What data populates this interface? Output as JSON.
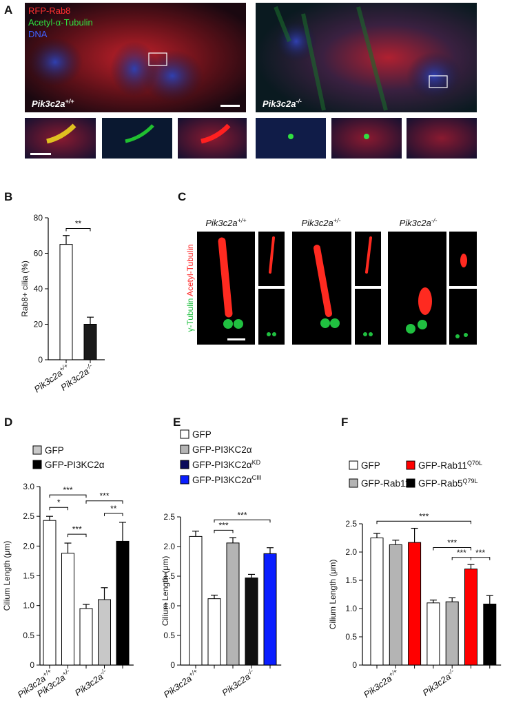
{
  "panels": {
    "A": {
      "label": "A",
      "channels": [
        "RFP-Rab8",
        "Acetyl-α-Tubulin",
        "DNA"
      ],
      "genotypes": [
        {
          "base": "Pik3c2a",
          "sup": "+/+"
        },
        {
          "base": "Pik3c2a",
          "sup": "-/-"
        }
      ]
    },
    "C": {
      "label": "C",
      "stain": [
        "γ-Tubulin",
        "Acetyl-Tubulin"
      ],
      "genotypes": [
        {
          "base": "Pik3c2a",
          "sup": "+/+"
        },
        {
          "base": "Pik3c2a",
          "sup": "+/-"
        },
        {
          "base": "Pik3c2a",
          "sup": "-/-"
        }
      ]
    }
  },
  "chart_data": [
    {
      "type": "bar",
      "panel": "B",
      "ylabel": "Rab8+ cilia (%)",
      "categories": [
        {
          "base": "Pik3c2a",
          "sup": "+/+"
        },
        {
          "base": "Pik3c2a",
          "sup": "-/-"
        }
      ],
      "values": [
        65,
        20
      ],
      "errors": [
        5,
        4
      ],
      "colors": [
        "#ffffff",
        "#1a1a1a"
      ],
      "ylim": [
        0,
        80
      ],
      "yticks": [
        0,
        20,
        40,
        60,
        80
      ],
      "significance": [
        {
          "label": "**",
          "between": [
            0,
            1
          ]
        }
      ]
    },
    {
      "type": "bar",
      "panel": "D",
      "ylabel": "Cilium Length (μm)",
      "legend": [
        {
          "label": "GFP",
          "color": "#c8c8c8"
        },
        {
          "label": "GFP-PI3KC2α",
          "color": "#000000"
        }
      ],
      "categories": [
        {
          "base": "Pik3c2a",
          "sup": "+/+"
        },
        {
          "base": "Pik3c2a",
          "sup": "+/-"
        },
        null,
        {
          "base": "Pik3c2a",
          "sup": "-/-"
        },
        null
      ],
      "values": [
        2.43,
        1.88,
        0.95,
        1.1,
        2.08
      ],
      "errors": [
        0.07,
        0.17,
        0.07,
        0.2,
        0.32
      ],
      "colors": [
        "#ffffff",
        "#ffffff",
        "#ffffff",
        "#c8c8c8",
        "#000000"
      ],
      "ylim": [
        0,
        3
      ],
      "yticks": [
        0,
        0.5,
        {
          "value": 1,
          "label": "1.0"
        },
        1.5,
        {
          "value": 2,
          "label": "2.0"
        },
        2.5,
        {
          "value": 3,
          "label": "3.0"
        }
      ],
      "significance": [
        {
          "label": "***",
          "between": [
            0,
            2
          ]
        },
        {
          "label": "*",
          "between": [
            0,
            1
          ]
        },
        {
          "label": "***",
          "between": [
            1,
            2
          ]
        },
        {
          "label": "***",
          "between": [
            2,
            4
          ]
        },
        {
          "label": "**",
          "between": [
            3,
            4
          ]
        }
      ]
    },
    {
      "type": "bar",
      "panel": "E",
      "ylabel": "Cilium Length (μm)",
      "legend": [
        {
          "label": "GFP",
          "color": "#ffffff"
        },
        {
          "label": "GFP-PI3KC2α",
          "color": "#b4b4b4"
        },
        {
          "label": "GFP-PI3KC2α",
          "sup": "KD",
          "color": "#0a0a5a"
        },
        {
          "label": "GFP-PI3KC2α",
          "sup": "CIII",
          "color": "#0a1eff"
        }
      ],
      "categories": [
        {
          "base": "Pik3c2a",
          "sup": "+/+"
        },
        null,
        null,
        {
          "base": "Pik3c2a",
          "sup": "-/-"
        },
        null
      ],
      "values": [
        2.17,
        1.12,
        2.06,
        1.47,
        1.88
      ],
      "errors": [
        0.09,
        0.06,
        0.09,
        0.06,
        0.1
      ],
      "colors": [
        "#ffffff",
        "#ffffff",
        "#b4b4b4",
        "#111111",
        "#0a1eff"
      ],
      "ylim": [
        0,
        2.5
      ],
      "yticks": [
        0,
        0.5,
        {
          "value": 1,
          "label": "1.0"
        },
        1.5,
        {
          "value": 2,
          "label": "2.0"
        },
        2.5
      ],
      "significance": [
        {
          "label": "***",
          "between": [
            1,
            2
          ]
        },
        {
          "label": "***",
          "between": [
            1,
            4
          ]
        }
      ]
    },
    {
      "type": "bar",
      "panel": "F",
      "ylabel": "Cilium Length (μm)",
      "legend": [
        {
          "label": "GFP",
          "color": "#ffffff"
        },
        {
          "label": "GFP-Rab11",
          "color": "#b4b4b4"
        },
        {
          "label": "GFP-Rab11",
          "sup": "Q70L",
          "color": "#ff0000"
        },
        {
          "label": "GFP-Rab5",
          "sup": "Q79L",
          "color": "#000000"
        }
      ],
      "categories": [
        null,
        {
          "base": "Pik3c2a",
          "sup": "+/+"
        },
        null,
        null,
        {
          "base": "Pik3c2a",
          "sup": "-/-"
        },
        null,
        null
      ],
      "values": [
        2.25,
        2.13,
        2.17,
        1.1,
        1.12,
        1.7,
        1.08
      ],
      "errors": [
        0.08,
        0.08,
        0.25,
        0.05,
        0.07,
        0.08,
        0.15
      ],
      "colors": [
        "#ffffff",
        "#b4b4b4",
        "#ff0000",
        "#ffffff",
        "#b4b4b4",
        "#ff0000",
        "#000000"
      ],
      "ylim": [
        0,
        2.5
      ],
      "yticks": [
        0,
        0.5,
        {
          "value": 1,
          "label": "1.0"
        },
        1.5,
        {
          "value": 2,
          "label": "2.0"
        },
        2.5
      ],
      "significance": [
        {
          "label": "***",
          "between": [
            0,
            5
          ]
        },
        {
          "label": "***",
          "between": [
            3,
            5
          ]
        },
        {
          "label": "***",
          "between": [
            4,
            5
          ]
        },
        {
          "label": "***",
          "between": [
            5,
            6
          ]
        }
      ]
    }
  ]
}
